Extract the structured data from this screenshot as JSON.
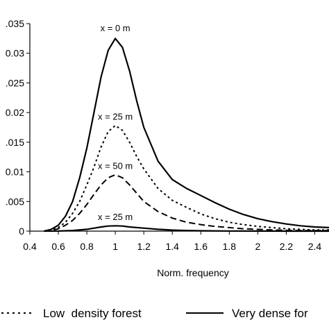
{
  "chart_data": {
    "type": "line",
    "title": "",
    "xlabel": "Norm. frequency",
    "ylabel": "",
    "xlim": [
      0.4,
      2.5
    ],
    "ylim": [
      0,
      0.035
    ],
    "x_ticks": [
      0.4,
      0.6,
      0.8,
      1,
      1.2,
      1.4,
      1.6,
      1.8,
      2,
      2.2,
      2.4
    ],
    "x_tick_labels": [
      "0.4",
      "0.6",
      "0.8",
      "1",
      "1.2",
      "1.4",
      "1.6",
      "1.8",
      "2",
      "2.2",
      "2.4"
    ],
    "y_ticks": [
      0,
      0.005,
      0.01,
      0.015,
      0.02,
      0.025,
      0.03,
      0.035
    ],
    "y_tick_labels": [
      "0",
      ".005",
      "0.01",
      ".015",
      "0.02",
      ".025",
      "0.03",
      ".035"
    ],
    "grid": false,
    "legend_position": "bottom",
    "series": [
      {
        "name": "Very dense forest",
        "style": "solid",
        "color": "#000000",
        "x": [
          0.5,
          0.55,
          0.6,
          0.65,
          0.7,
          0.75,
          0.8,
          0.85,
          0.9,
          0.95,
          1.0,
          1.05,
          1.1,
          1.15,
          1.2,
          1.3,
          1.4,
          1.5,
          1.6,
          1.7,
          1.8,
          1.9,
          2.0,
          2.1,
          2.2,
          2.3,
          2.4,
          2.5
        ],
        "values": [
          0,
          0.0003,
          0.001,
          0.0025,
          0.005,
          0.009,
          0.014,
          0.02,
          0.026,
          0.0305,
          0.0325,
          0.031,
          0.027,
          0.022,
          0.0175,
          0.0118,
          0.0087,
          0.0072,
          0.006,
          0.0048,
          0.0037,
          0.0028,
          0.0021,
          0.0016,
          0.0012,
          0.0009,
          0.0007,
          0.0006
        ]
      },
      {
        "name": "",
        "style": "dashed",
        "color": "#000000",
        "x": [
          0.5,
          0.55,
          0.6,
          0.65,
          0.7,
          0.75,
          0.8,
          0.85,
          0.9,
          0.95,
          1.0,
          1.05,
          1.1,
          1.15,
          1.2,
          1.3,
          1.4,
          1.5,
          1.6,
          1.7,
          1.8,
          1.9,
          2.0,
          2.1,
          2.2,
          2.3,
          2.4,
          2.5
        ],
        "values": [
          0,
          0.0001,
          0.0004,
          0.001,
          0.0018,
          0.003,
          0.0045,
          0.0062,
          0.0078,
          0.009,
          0.0095,
          0.009,
          0.0078,
          0.0064,
          0.005,
          0.0033,
          0.0022,
          0.0015,
          0.0011,
          0.0008,
          0.0006,
          0.0004,
          0.0003,
          0.0002,
          0.00015,
          0.0001,
          0.0001,
          0.0001
        ]
      },
      {
        "name": "Low  density forest",
        "style": "dotted",
        "color": "#000000",
        "x": [
          0.5,
          0.55,
          0.6,
          0.65,
          0.7,
          0.75,
          0.8,
          0.85,
          0.9,
          0.95,
          1.0,
          1.05,
          1.1,
          1.15,
          1.2,
          1.3,
          1.4,
          1.5,
          1.6,
          1.7,
          1.8,
          1.9,
          2.0,
          2.1,
          2.2,
          2.3,
          2.4,
          2.5
        ],
        "values": [
          0,
          0.0001,
          0.0006,
          0.0015,
          0.003,
          0.005,
          0.0078,
          0.0108,
          0.0142,
          0.0168,
          0.0178,
          0.017,
          0.015,
          0.0126,
          0.0105,
          0.0072,
          0.0052,
          0.004,
          0.0029,
          0.0021,
          0.0015,
          0.0011,
          0.0008,
          0.0006,
          0.0004,
          0.0003,
          0.0002,
          0.0002
        ]
      },
      {
        "name": "",
        "style": "solid",
        "color": "#000000",
        "x": [
          0.5,
          0.6,
          0.7,
          0.8,
          0.85,
          0.9,
          0.95,
          1.0,
          1.05,
          1.1,
          1.2,
          1.3,
          1.4,
          1.5,
          1.6,
          1.8,
          2.0,
          2.2,
          2.5
        ],
        "values": [
          0,
          2e-05,
          0.0001,
          0.0003,
          0.0005,
          0.0007,
          0.00085,
          0.0009,
          0.00085,
          0.0007,
          0.0005,
          0.0003,
          0.00018,
          0.0001,
          6e-05,
          2e-05,
          1e-05,
          0,
          0
        ]
      }
    ],
    "annotations": [
      {
        "text": "x = 0 m",
        "x": 1.0,
        "y": 0.0337
      },
      {
        "text": "x = 25 m",
        "x": 1.0,
        "y": 0.0188
      },
      {
        "text": "x = 50 m",
        "x": 1.0,
        "y": 0.0105
      },
      {
        "text": "x = 25 m",
        "x": 1.0,
        "y": 0.0019
      }
    ],
    "legend": [
      {
        "label": "Low  density forest",
        "style": "dotted"
      },
      {
        "label": "Very dense for",
        "style": "solid"
      }
    ]
  }
}
